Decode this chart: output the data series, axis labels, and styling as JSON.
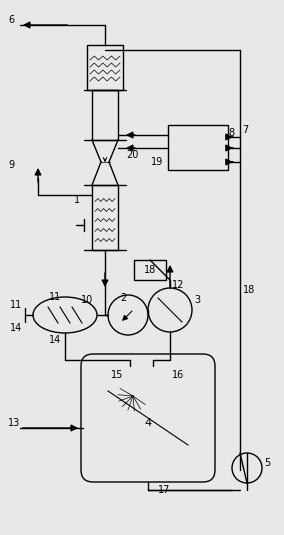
{
  "bg_color": "#e8e8e8",
  "line_color": "#000000",
  "figsize": [
    2.84,
    5.35
  ],
  "dpi": 100
}
